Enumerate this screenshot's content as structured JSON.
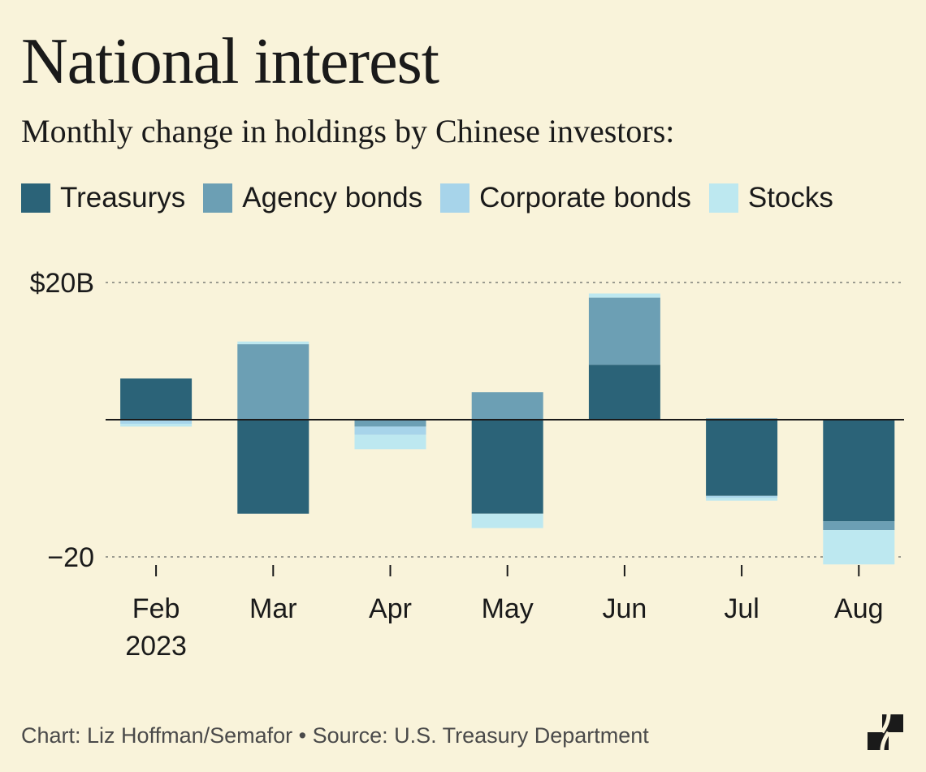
{
  "header": {
    "title": "National interest",
    "subtitle": "Monthly change in holdings by Chinese investors:"
  },
  "legend": [
    {
      "label": "Treasurys",
      "color": "#2b6378"
    },
    {
      "label": "Agency bonds",
      "color": "#6c9fb4"
    },
    {
      "label": "Corporate bonds",
      "color": "#a7d4ea"
    },
    {
      "label": "Stocks",
      "color": "#bde8f0"
    }
  ],
  "footer": {
    "credit": "Chart: Liz Hoffman/Semafor • Source: U.S. Treasury Department"
  },
  "logo": {
    "icon": "semafor-logo-icon"
  },
  "chart_data": {
    "type": "bar",
    "stacked": true,
    "categories": [
      "Feb",
      "Mar",
      "Apr",
      "May",
      "Jun",
      "Jul",
      "Aug"
    ],
    "category_sublabels": [
      "2023",
      "",
      "",
      "",
      "",
      "",
      ""
    ],
    "series": [
      {
        "name": "Treasurys",
        "color": "#2b6378",
        "values": [
          6,
          -13.7,
          0,
          -13.7,
          8,
          -11.1,
          -14.8
        ]
      },
      {
        "name": "Agency bonds",
        "color": "#6c9fb4",
        "values": [
          0,
          11,
          -1,
          4,
          9.8,
          0.2,
          -1.3
        ]
      },
      {
        "name": "Corporate bonds",
        "color": "#a7d4ea",
        "values": [
          -0.6,
          0,
          -1.2,
          0,
          0,
          -0.3,
          0
        ]
      },
      {
        "name": "Stocks",
        "color": "#bde8f0",
        "values": [
          -0.4,
          0.4,
          -2.1,
          -2.1,
          0.6,
          -0.4,
          -5
        ]
      }
    ],
    "y_ticks": [
      {
        "value": 20,
        "label": "$20B"
      },
      {
        "value": -20,
        "label": "−20"
      }
    ],
    "ylim": [
      -21.5,
      21
    ],
    "grid": "dashed at ticks",
    "zero_line": true,
    "legend_position": "top-left"
  }
}
